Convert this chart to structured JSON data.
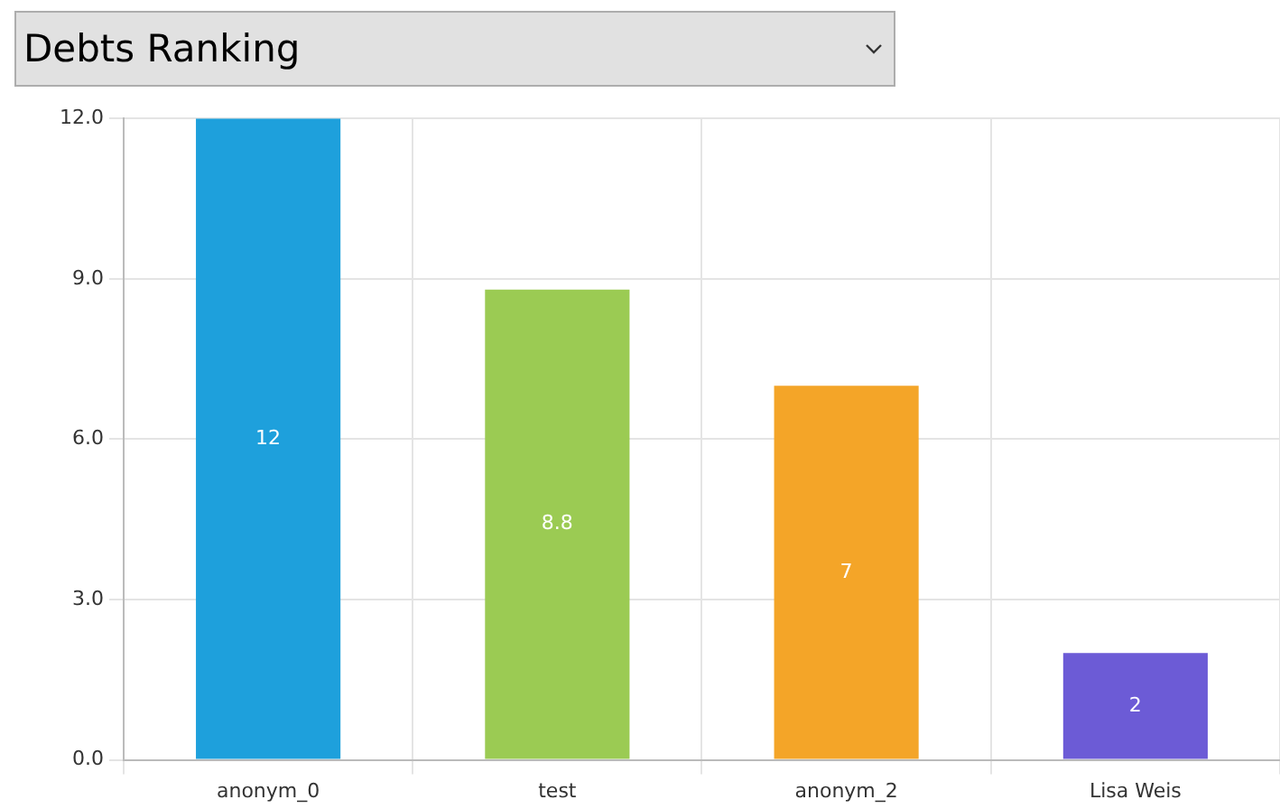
{
  "chart_data": {
    "type": "bar",
    "title": "Debts Ranking",
    "categories": [
      "anonym_0",
      "test",
      "anonym_2",
      "Lisa Weis"
    ],
    "values": [
      12,
      8.8,
      7,
      2
    ],
    "colors": [
      "#1ea0dc",
      "#9bcb53",
      "#f4a528",
      "#6c5bd6"
    ],
    "ylim": [
      0,
      12
    ],
    "yticks": [
      {
        "value": 0,
        "label": "0.0"
      },
      {
        "value": 3,
        "label": "3.0"
      },
      {
        "value": 6,
        "label": "6.0"
      },
      {
        "value": 9,
        "label": "9.0"
      },
      {
        "value": 12,
        "label": "12.0"
      }
    ],
    "grid": true,
    "legend": false,
    "data_labels": true
  }
}
